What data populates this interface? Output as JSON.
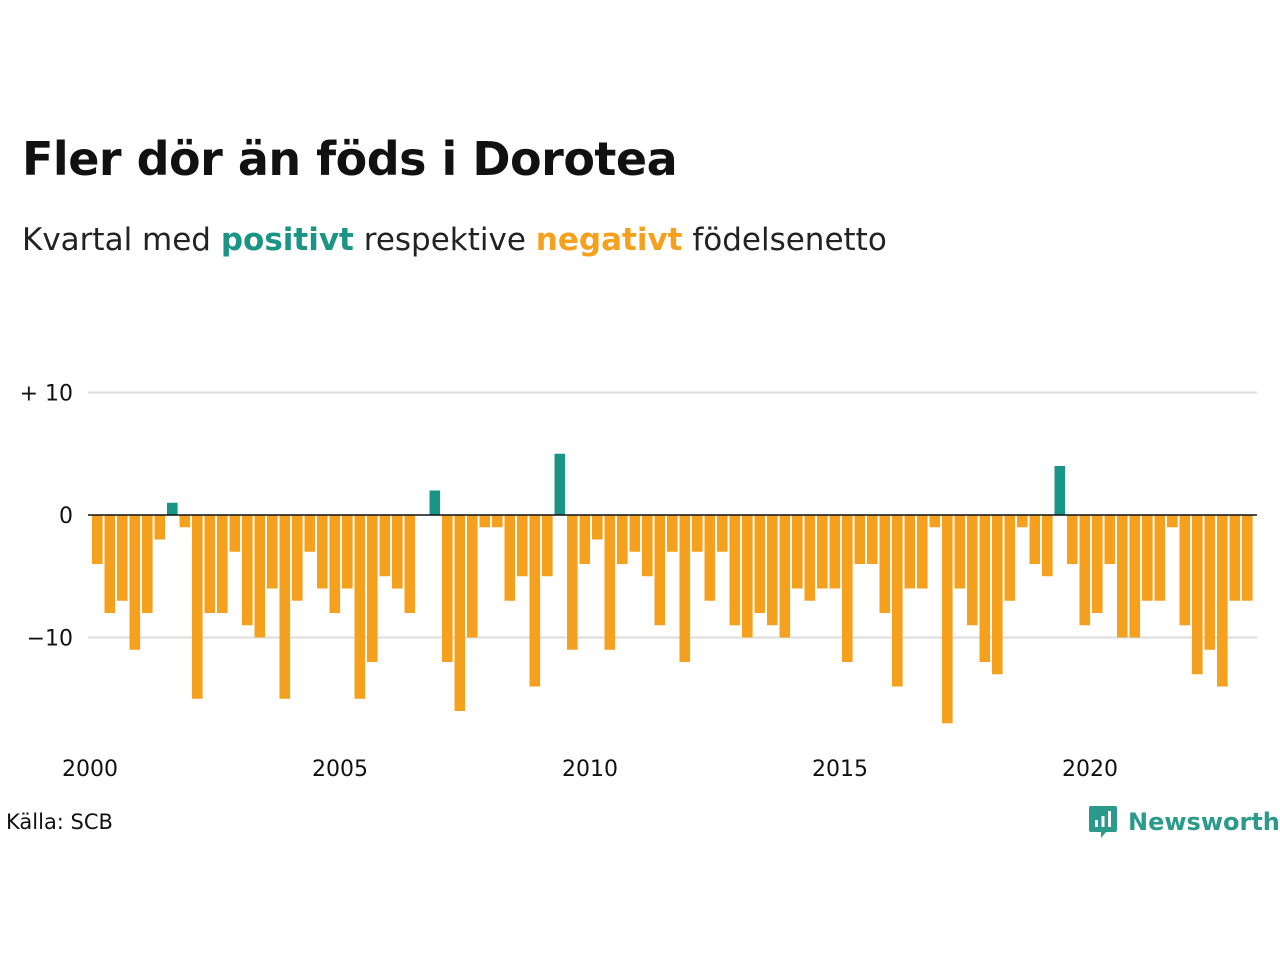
{
  "header": {
    "title": "Fler dör än föds i Dorotea",
    "subtitle_prefix": "Kvartal med",
    "subtitle_positive": "positivt",
    "subtitle_middle": "respektive",
    "subtitle_negative": "negativt",
    "subtitle_suffix": "födelsenetto"
  },
  "footer": {
    "source": "Källa: SCB",
    "brand": "Newsworthy",
    "brand_icon": "bar-chart-speech-bubble-icon"
  },
  "colors": {
    "positive": "#1a9485",
    "negative": "#f5a11d",
    "grid": "#dddddd",
    "baseline": "#111111"
  },
  "chart_data": {
    "type": "bar",
    "x_unit": "quarter",
    "x_start": "2000 Q1",
    "x_tick_labels": [
      "2000",
      "2005",
      "2010",
      "2015",
      "2020"
    ],
    "y_tick_labels": [
      "+ 10",
      "0",
      "−10"
    ],
    "y_ticks": [
      10,
      0,
      -10
    ],
    "ylim": [
      -18,
      10
    ],
    "values": [
      -4,
      -8,
      -7,
      -11,
      -8,
      -2,
      1,
      -1,
      -15,
      -8,
      -8,
      -3,
      -9,
      -10,
      -6,
      -15,
      -7,
      -3,
      -6,
      -8,
      -6,
      -15,
      -12,
      -5,
      -6,
      -8,
      0,
      2,
      -12,
      -16,
      -10,
      -1,
      -1,
      -7,
      -5,
      -14,
      -5,
      5,
      -11,
      -4,
      -2,
      -11,
      -4,
      -3,
      -5,
      -9,
      -3,
      -12,
      -3,
      -7,
      -3,
      -9,
      -10,
      -8,
      -9,
      -10,
      -6,
      -7,
      -6,
      -6,
      -12,
      -4,
      -4,
      -8,
      -14,
      -6,
      -6,
      -1,
      -17,
      -6,
      -9,
      -12,
      -13,
      -7,
      -1,
      -4,
      -5,
      4,
      -4,
      -9,
      -8,
      -4,
      -10,
      -10,
      -7,
      -7,
      -1,
      -9,
      -13,
      -11,
      -14,
      -7,
      -7
    ]
  }
}
